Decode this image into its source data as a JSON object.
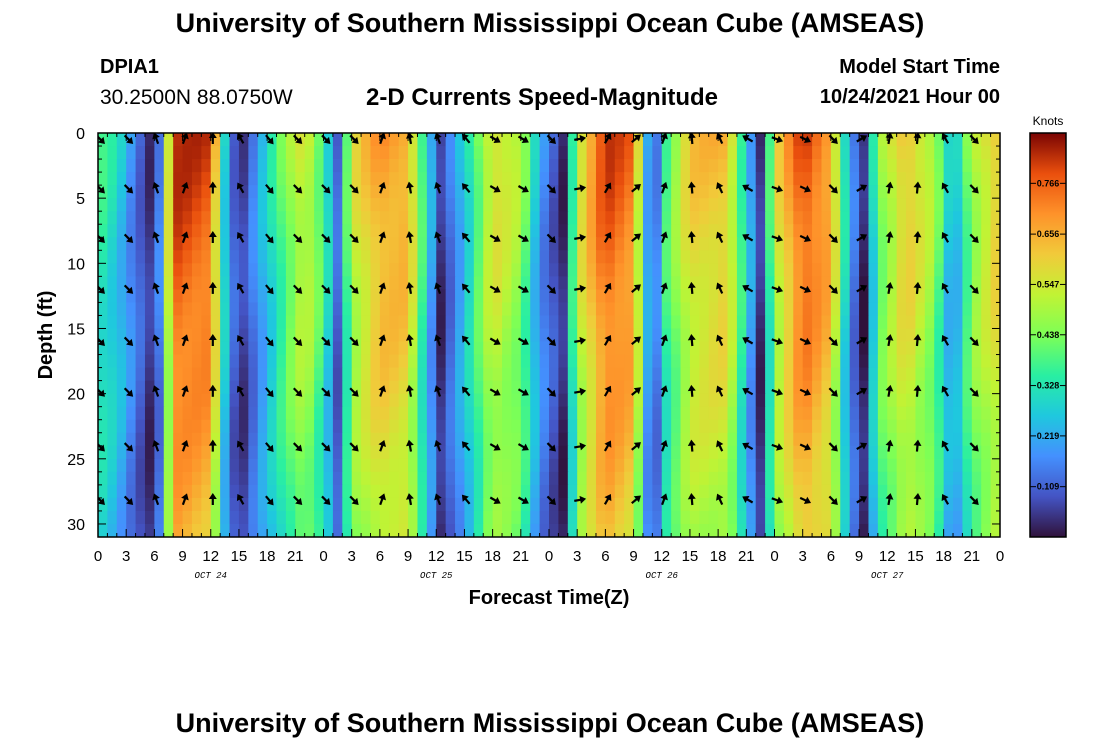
{
  "header": {
    "title": "University of Southern Mississippi Ocean Cube (AMSEAS)",
    "station": "DPIA1",
    "coordinates": "30.2500N  88.0750W",
    "plot_title": "2-D Currents Speed-Magnitude",
    "model_start_label": "Model Start Time",
    "model_start_value": "10/24/2021 Hour 00"
  },
  "footer": {
    "title": "University of Southern Mississippi Ocean Cube (AMSEAS)"
  },
  "chart_data": {
    "type": "heatmap",
    "title": "2-D Currents Speed-Magnitude",
    "xlabel": "Forecast Time(Z)",
    "ylabel": "Depth (ft)",
    "x_hours": [
      0,
      96
    ],
    "ylim": [
      0,
      31
    ],
    "x_tick_labels": [
      "0",
      "3",
      "6",
      "9",
      "12",
      "15",
      "18",
      "21",
      "0",
      "3",
      "6",
      "9",
      "12",
      "15",
      "18",
      "21",
      "0",
      "3",
      "6",
      "9",
      "12",
      "15",
      "18",
      "21",
      "0",
      "3",
      "6",
      "9",
      "12",
      "15",
      "18",
      "21",
      "0"
    ],
    "date_labels": [
      {
        "label": "OCT 24",
        "hour": 12
      },
      {
        "label": "OCT 25",
        "hour": 36
      },
      {
        "label": "OCT 26",
        "hour": 60
      },
      {
        "label": "OCT 27",
        "hour": 84
      }
    ],
    "y_ticks": [
      0,
      5,
      10,
      15,
      20,
      25,
      30
    ],
    "colorbar": {
      "label": "Knots",
      "range": [
        0,
        0.875
      ],
      "ticks": [
        "0.766",
        "0.656",
        "0.547",
        "0.438",
        "0.328",
        "0.219",
        "0.109"
      ]
    },
    "speed_profile_surface": [
      {
        "h": 0,
        "v": 0.38
      },
      {
        "h": 2,
        "v": 0.3
      },
      {
        "h": 4,
        "v": 0.15
      },
      {
        "h": 6,
        "v": 0.02
      },
      {
        "h": 7,
        "v": 0.3
      },
      {
        "h": 8,
        "v": 0.84
      },
      {
        "h": 12,
        "v": 0.8
      },
      {
        "h": 13.5,
        "v": 0.3
      },
      {
        "h": 15,
        "v": 0.03
      },
      {
        "h": 17,
        "v": 0.2
      },
      {
        "h": 20,
        "v": 0.45
      },
      {
        "h": 22,
        "v": 0.58
      },
      {
        "h": 24,
        "v": 0.4
      },
      {
        "h": 25.5,
        "v": 0.12
      },
      {
        "h": 27,
        "v": 0.55
      },
      {
        "h": 30,
        "v": 0.7
      },
      {
        "h": 33,
        "v": 0.68
      },
      {
        "h": 35,
        "v": 0.3
      },
      {
        "h": 36.5,
        "v": 0.05
      },
      {
        "h": 39,
        "v": 0.28
      },
      {
        "h": 42,
        "v": 0.6
      },
      {
        "h": 45,
        "v": 0.5
      },
      {
        "h": 47,
        "v": 0.2
      },
      {
        "h": 49.5,
        "v": 0.04
      },
      {
        "h": 51,
        "v": 0.55
      },
      {
        "h": 54,
        "v": 0.82
      },
      {
        "h": 57,
        "v": 0.75
      },
      {
        "h": 58,
        "v": 0.4
      },
      {
        "h": 59,
        "v": 0.05
      },
      {
        "h": 60.5,
        "v": 0.4
      },
      {
        "h": 63,
        "v": 0.62
      },
      {
        "h": 67,
        "v": 0.65
      },
      {
        "h": 69,
        "v": 0.3
      },
      {
        "h": 70.5,
        "v": 0.05
      },
      {
        "h": 72,
        "v": 0.55
      },
      {
        "h": 75,
        "v": 0.82
      },
      {
        "h": 78,
        "v": 0.7
      },
      {
        "h": 80,
        "v": 0.2
      },
      {
        "h": 81.5,
        "v": 0.03
      },
      {
        "h": 83,
        "v": 0.45
      },
      {
        "h": 86,
        "v": 0.65
      },
      {
        "h": 89,
        "v": 0.5
      },
      {
        "h": 91,
        "v": 0.2
      },
      {
        "h": 93,
        "v": 0.5
      },
      {
        "h": 96,
        "v": 0.65
      }
    ],
    "vector_depths": [
      0,
      3.8,
      7.6,
      11.5,
      15.5,
      19.4,
      23.6,
      27.7
    ],
    "vector_hours": [
      0,
      3,
      6,
      9,
      12,
      15,
      18,
      21,
      24,
      27,
      30,
      33,
      36,
      39,
      42,
      45,
      48,
      51,
      54,
      57,
      60,
      63,
      66,
      69,
      72,
      75,
      78,
      81,
      84,
      87,
      90,
      93
    ],
    "vector_directions_deg_by_hour": [
      45,
      45,
      200,
      160,
      180,
      210,
      40,
      45,
      45,
      45,
      160,
      190,
      200,
      220,
      60,
      60,
      45,
      100,
      150,
      130,
      160,
      185,
      205,
      240,
      70,
      65,
      45,
      120,
      170,
      175,
      210,
      45
    ]
  }
}
